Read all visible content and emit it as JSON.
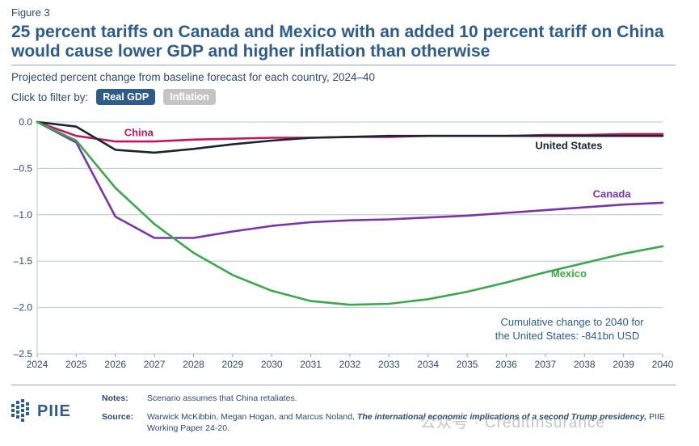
{
  "figure_label": "Figure 3",
  "title": "25 percent tariffs on Canada and Mexico with an added 10 percent tariff on China would cause lower GDP and higher inflation than otherwise",
  "subtitle": "Projected percent change from baseline forecast for each country, 2024–40",
  "filter": {
    "label": "Click to filter by:",
    "options": [
      {
        "label": "Real GDP",
        "active": true
      },
      {
        "label": "Inflation",
        "active": false
      }
    ]
  },
  "annotation": {
    "line1": "Cumulative change to 2040 for",
    "line2": "the United States: -841bn USD"
  },
  "chart_data": {
    "type": "line",
    "title": "25 percent tariffs on Canada and Mexico with an added 10 percent tariff on China would cause lower GDP and higher inflation than otherwise",
    "xlabel": "",
    "ylabel": "",
    "x": [
      2024,
      2025,
      2026,
      2027,
      2028,
      2029,
      2030,
      2031,
      2032,
      2033,
      2034,
      2035,
      2036,
      2037,
      2038,
      2039,
      2040
    ],
    "xlim": [
      2024,
      2040
    ],
    "ylim": [
      -2.5,
      0.0
    ],
    "y_ticks": [
      0.0,
      -0.5,
      -1.0,
      -1.5,
      -2.0,
      -2.5
    ],
    "y_tick_labels": [
      "0.0",
      "–0.5",
      "–1.0",
      "–1.5",
      "–2.0",
      "–2.5"
    ],
    "x_tick_labels": [
      "2024",
      "2025",
      "2026",
      "2027",
      "2028",
      "2029",
      "2030",
      "2031",
      "2032",
      "2033",
      "2034",
      "2035",
      "2036",
      "2037",
      "2038",
      "2039",
      "2040"
    ],
    "grid": true,
    "legend": "direct labels at line ends",
    "series": [
      {
        "name": "China",
        "color": "#c0175d",
        "label_year": 2026.6,
        "label_value": -0.11,
        "values": [
          0.0,
          -0.15,
          -0.21,
          -0.21,
          -0.19,
          -0.18,
          -0.17,
          -0.17,
          -0.16,
          -0.16,
          -0.15,
          -0.15,
          -0.15,
          -0.14,
          -0.14,
          -0.13,
          -0.13
        ]
      },
      {
        "name": "United States",
        "color": "#1a2534",
        "label_year": 2037.6,
        "label_value": -0.25,
        "values": [
          0.0,
          -0.05,
          -0.3,
          -0.33,
          -0.29,
          -0.24,
          -0.2,
          -0.17,
          -0.16,
          -0.15,
          -0.15,
          -0.15,
          -0.15,
          -0.15,
          -0.15,
          -0.15,
          -0.15
        ]
      },
      {
        "name": "Canada",
        "color": "#7b33ad",
        "label_year": 2038.7,
        "label_value": -0.77,
        "values": [
          0.0,
          -0.22,
          -1.02,
          -1.25,
          -1.25,
          -1.18,
          -1.12,
          -1.08,
          -1.06,
          -1.05,
          -1.03,
          -1.01,
          -0.98,
          -0.95,
          -0.92,
          -0.89,
          -0.87
        ]
      },
      {
        "name": "Mexico",
        "color": "#3aa94a",
        "label_year": 2037.6,
        "label_value": -1.63,
        "values": [
          0.0,
          -0.2,
          -0.71,
          -1.1,
          -1.41,
          -1.65,
          -1.82,
          -1.93,
          -1.97,
          -1.96,
          -1.91,
          -1.83,
          -1.73,
          -1.62,
          -1.52,
          -1.42,
          -1.34
        ]
      }
    ]
  },
  "notes": {
    "notes_key": "Notes:",
    "notes_text": "Scenario assumes that China retaliates.",
    "source_key": "Source:",
    "source_authors": "Warwick McKibbin, Megan Hogan, and Marcus Noland,",
    "source_title": "The international economic implications of a second Trump presidency,",
    "source_rest": "PIIE Working Paper 24-20."
  },
  "logo": {
    "text": "PIIE"
  },
  "watermark": "公众号 · CreditInsurance",
  "colors": {
    "title": "#2c5c8f",
    "axis_text": "#2b4a72",
    "grid": "#b5c5d6",
    "active_button": "#2f5b89",
    "inactive_button": "#c4c4c4"
  }
}
